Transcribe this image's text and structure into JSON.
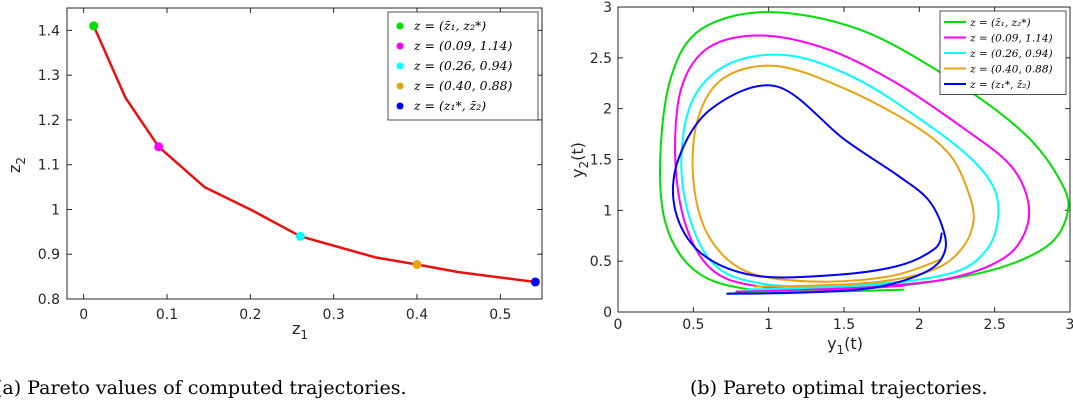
{
  "chart_data": [
    {
      "type": "line",
      "panel": "a",
      "caption": "(a) Pareto values of computed trajectories.",
      "xlabel": "z",
      "xlabel_sub": "1",
      "ylabel": "z",
      "ylabel_sub": "2",
      "xlim": [
        -0.02,
        0.55
      ],
      "ylim": [
        0.8,
        1.45
      ],
      "xticks": [
        "0",
        "0.1",
        "0.2",
        "0.3",
        "0.4",
        "0.5"
      ],
      "yticks": [
        "0.8",
        "0.9",
        "1",
        "1.1",
        "1.2",
        "1.3",
        "1.4"
      ],
      "front": {
        "color": "#e8110f",
        "x": [
          0.012,
          0.05,
          0.09,
          0.145,
          0.2,
          0.26,
          0.35,
          0.4,
          0.45,
          0.542
        ],
        "y": [
          1.41,
          1.25,
          1.14,
          1.05,
          1.0,
          0.94,
          0.893,
          0.877,
          0.86,
          0.838
        ]
      },
      "points": [
        {
          "label": "z = (z̄₁, z₂*)",
          "x": 0.012,
          "y": 1.41,
          "color": "#00e000"
        },
        {
          "label": "z = (0.09, 1.14)",
          "x": 0.09,
          "y": 1.14,
          "color": "#ff00ff"
        },
        {
          "label": "z = (0.26, 0.94)",
          "x": 0.26,
          "y": 0.94,
          "color": "#00ffff"
        },
        {
          "label": "z = (0.40, 0.88)",
          "x": 0.4,
          "y": 0.877,
          "color": "#eba212"
        },
        {
          "label": "z = (z₁*, z̄₂)",
          "x": 0.542,
          "y": 0.838,
          "color": "#0000ff"
        }
      ]
    },
    {
      "type": "line",
      "panel": "b",
      "caption": "(b) Pareto optimal trajectories.",
      "xlabel": "y",
      "xlabel_sub": "1",
      "xlabel_suffix": "(t)",
      "ylabel": "y",
      "ylabel_sub": "2",
      "ylabel_suffix": "(t)",
      "xlim": [
        0,
        3
      ],
      "ylim": [
        0,
        3
      ],
      "xticks": [
        "0",
        "0.5",
        "1",
        "1.5",
        "2",
        "2.5",
        "3"
      ],
      "yticks": [
        "0",
        "0.5",
        "1",
        "1.5",
        "2",
        "2.5",
        "3"
      ],
      "series": [
        {
          "name": "z = (z̄₁, z₂*)",
          "color": "#00e000",
          "x": [
            0.72,
            1.0,
            1.5,
            2.0,
            2.5,
            2.85,
            2.98,
            2.95,
            2.7,
            2.2,
            1.6,
            1.0,
            0.55,
            0.35,
            0.28,
            0.32,
            0.5,
            0.8,
            1.3,
            1.9
          ],
          "y": [
            0.18,
            0.2,
            0.22,
            0.28,
            0.42,
            0.65,
            0.95,
            1.25,
            1.75,
            2.3,
            2.78,
            2.95,
            2.78,
            2.3,
            1.5,
            0.85,
            0.42,
            0.24,
            0.2,
            0.22
          ]
        },
        {
          "name": "z = (0.09, 1.14)",
          "color": "#ff00ff",
          "x": [
            0.78,
            1.2,
            1.7,
            2.2,
            2.55,
            2.7,
            2.72,
            2.6,
            2.3,
            1.85,
            1.4,
            0.95,
            0.6,
            0.42,
            0.38,
            0.45,
            0.62,
            0.9,
            1.4,
            1.9
          ],
          "y": [
            0.2,
            0.22,
            0.25,
            0.33,
            0.52,
            0.78,
            1.1,
            1.45,
            1.8,
            2.25,
            2.58,
            2.72,
            2.6,
            2.2,
            1.5,
            0.85,
            0.42,
            0.26,
            0.22,
            0.26
          ]
        },
        {
          "name": "z = (0.26, 0.94)",
          "color": "#00ffff",
          "x": [
            0.85,
            1.3,
            1.8,
            2.25,
            2.45,
            2.52,
            2.5,
            2.35,
            2.05,
            1.6,
            1.15,
            0.75,
            0.5,
            0.42,
            0.48,
            0.65,
            0.95,
            1.4,
            1.9
          ],
          "y": [
            0.22,
            0.24,
            0.28,
            0.4,
            0.62,
            0.9,
            1.2,
            1.5,
            1.85,
            2.28,
            2.52,
            2.45,
            2.1,
            1.5,
            0.9,
            0.45,
            0.28,
            0.25,
            0.3
          ]
        },
        {
          "name": "z = (0.40, 0.88)",
          "color": "#eba212",
          "x": [
            0.9,
            1.3,
            1.75,
            2.1,
            2.28,
            2.36,
            2.32,
            2.2,
            1.95,
            1.5,
            1.05,
            0.7,
            0.53,
            0.5,
            0.6,
            0.85,
            1.3,
            1.8,
            2.15
          ],
          "y": [
            0.25,
            0.26,
            0.3,
            0.42,
            0.62,
            0.9,
            1.2,
            1.55,
            1.85,
            2.2,
            2.42,
            2.3,
            1.9,
            1.3,
            0.75,
            0.4,
            0.3,
            0.35,
            0.52
          ]
        },
        {
          "name": "z = (z₁*, z̄₂)",
          "color": "#0000ff",
          "x": [
            0.72,
            1.2,
            1.7,
            2.05,
            2.17,
            2.15,
            2.05,
            1.85,
            1.5,
            1.05,
            0.62,
            0.4,
            0.38,
            0.55,
            0.9,
            1.4,
            1.85,
            2.1,
            2.15
          ],
          "y": [
            0.18,
            0.19,
            0.24,
            0.4,
            0.6,
            0.85,
            1.12,
            1.35,
            1.7,
            2.22,
            2.0,
            1.5,
            1.0,
            0.58,
            0.36,
            0.36,
            0.45,
            0.62,
            0.78
          ]
        }
      ]
    }
  ]
}
